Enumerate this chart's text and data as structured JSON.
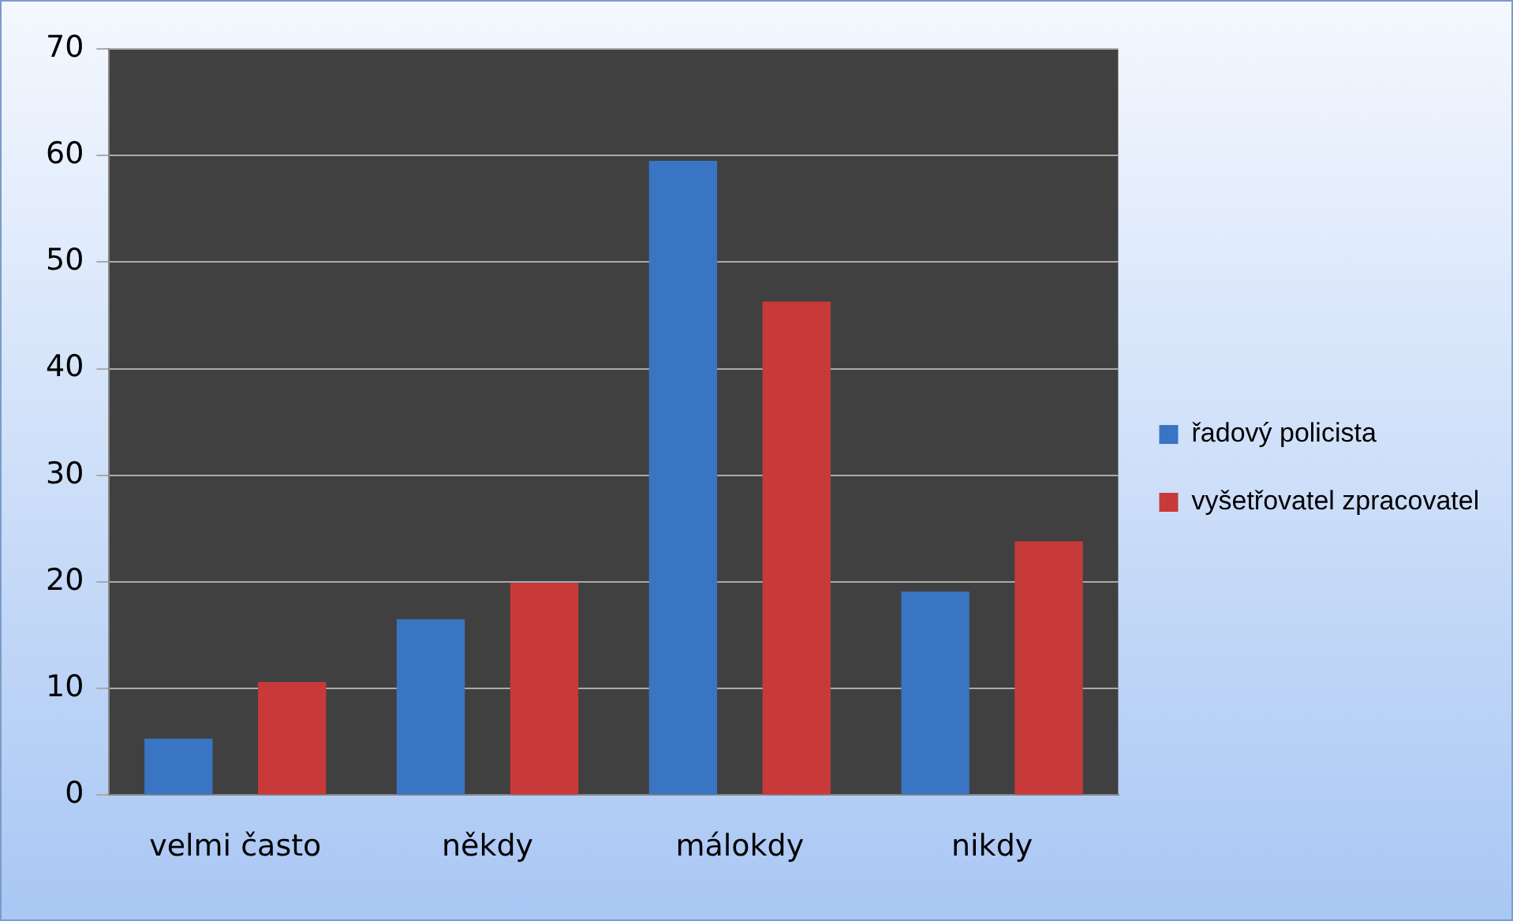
{
  "chart_data": {
    "type": "bar",
    "categories": [
      "velmi často",
      "někdy",
      "málokdy",
      "nikdy"
    ],
    "series": [
      {
        "name": "řadový policista",
        "color": "#3a75c4",
        "values": [
          5.3,
          16.5,
          59.5,
          19.1
        ]
      },
      {
        "name": "vyšetřovatel zpracovatel",
        "color": "#c83a3a",
        "values": [
          10.6,
          19.9,
          46.3,
          23.8
        ]
      }
    ],
    "ylim": [
      0,
      70
    ],
    "yticks": [
      0,
      10,
      20,
      30,
      40,
      50,
      60,
      70
    ],
    "grid": "y",
    "legend": "right"
  }
}
